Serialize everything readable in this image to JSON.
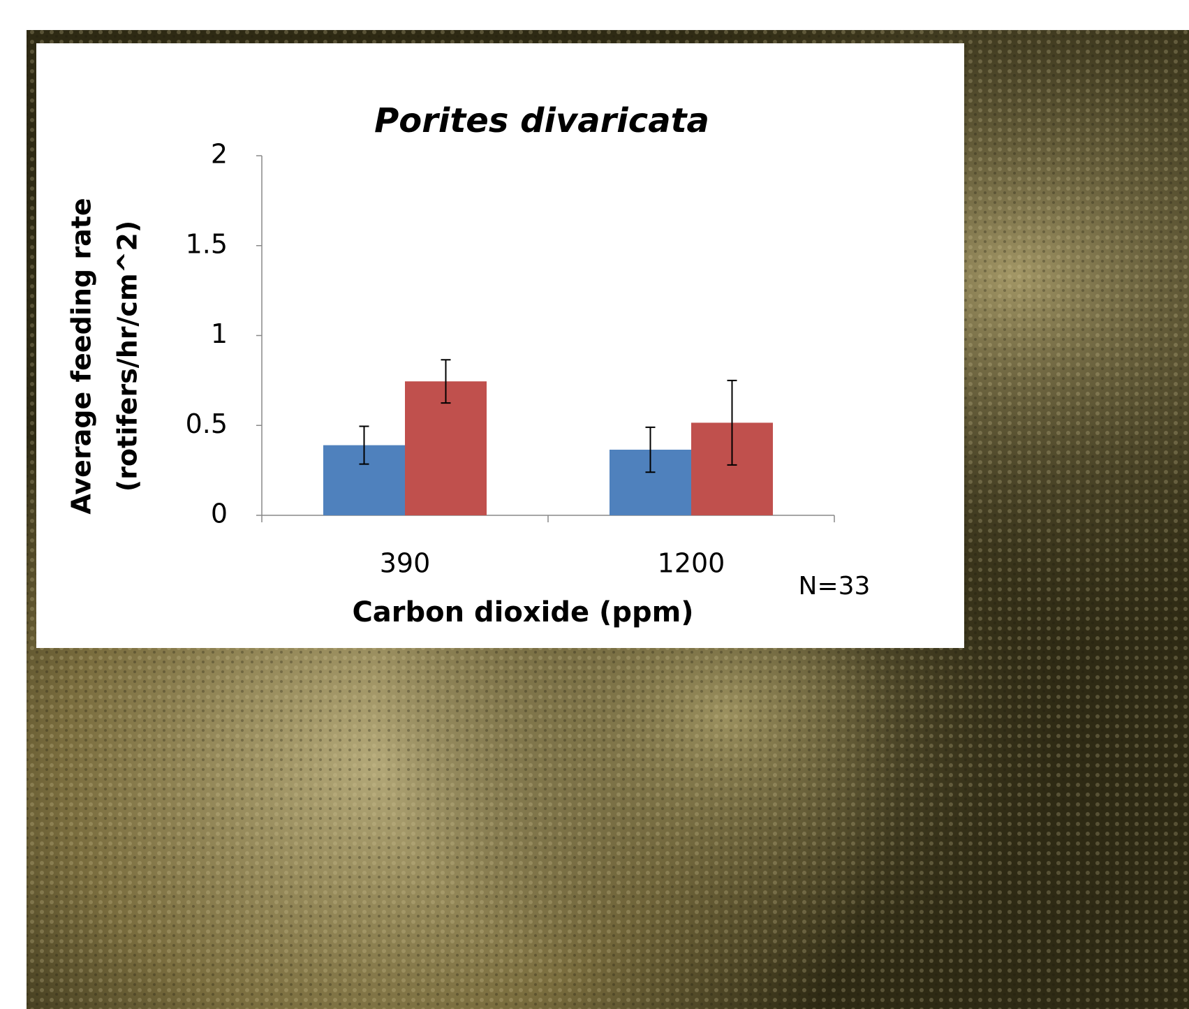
{
  "chart_data": {
    "type": "bar",
    "title": "Porites divaricata",
    "y_label": [
      "Average  feeding rate",
      "(rotifers/hr/cm^2)"
    ],
    "x_label": "Carbon dioxide (ppm)",
    "annotation": "N=33",
    "categories": [
      "390",
      "1200"
    ],
    "series": [
      {
        "color": "#4f81bd",
        "values": [
          0.39,
          0.365
        ],
        "errors": [
          0.105,
          0.125
        ]
      },
      {
        "color": "#c0504d",
        "values": [
          0.745,
          0.515
        ],
        "errors": [
          0.12,
          0.235
        ]
      }
    ],
    "ylim": [
      0,
      2
    ],
    "yticks": [
      0,
      0.5,
      1,
      1.5,
      2
    ],
    "grid": false
  }
}
